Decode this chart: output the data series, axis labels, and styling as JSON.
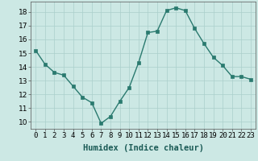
{
  "x": [
    0,
    1,
    2,
    3,
    4,
    5,
    6,
    7,
    8,
    9,
    10,
    11,
    12,
    13,
    14,
    15,
    16,
    17,
    18,
    19,
    20,
    21,
    22,
    23
  ],
  "y": [
    15.2,
    14.2,
    13.6,
    13.4,
    12.6,
    11.8,
    11.4,
    9.9,
    10.4,
    11.5,
    12.5,
    14.3,
    16.5,
    16.6,
    18.1,
    18.3,
    18.1,
    16.8,
    15.7,
    14.7,
    14.1,
    13.3,
    13.3,
    13.1
  ],
  "line_color": "#2a7a6f",
  "marker_color": "#2a7a6f",
  "bg_color": "#cce8e4",
  "grid_color": "#aacfcb",
  "xlabel": "Humidex (Indice chaleur)",
  "xlim": [
    -0.5,
    23.5
  ],
  "ylim": [
    9.5,
    18.75
  ],
  "yticks": [
    10,
    11,
    12,
    13,
    14,
    15,
    16,
    17,
    18
  ],
  "xtick_labels": [
    "0",
    "1",
    "2",
    "3",
    "4",
    "5",
    "6",
    "7",
    "8",
    "9",
    "10",
    "11",
    "12",
    "13",
    "14",
    "15",
    "16",
    "17",
    "18",
    "19",
    "20",
    "21",
    "22",
    "23"
  ],
  "xlabel_fontsize": 7.5,
  "tick_fontsize": 6.5,
  "linewidth": 1.0,
  "markersize": 2.5
}
